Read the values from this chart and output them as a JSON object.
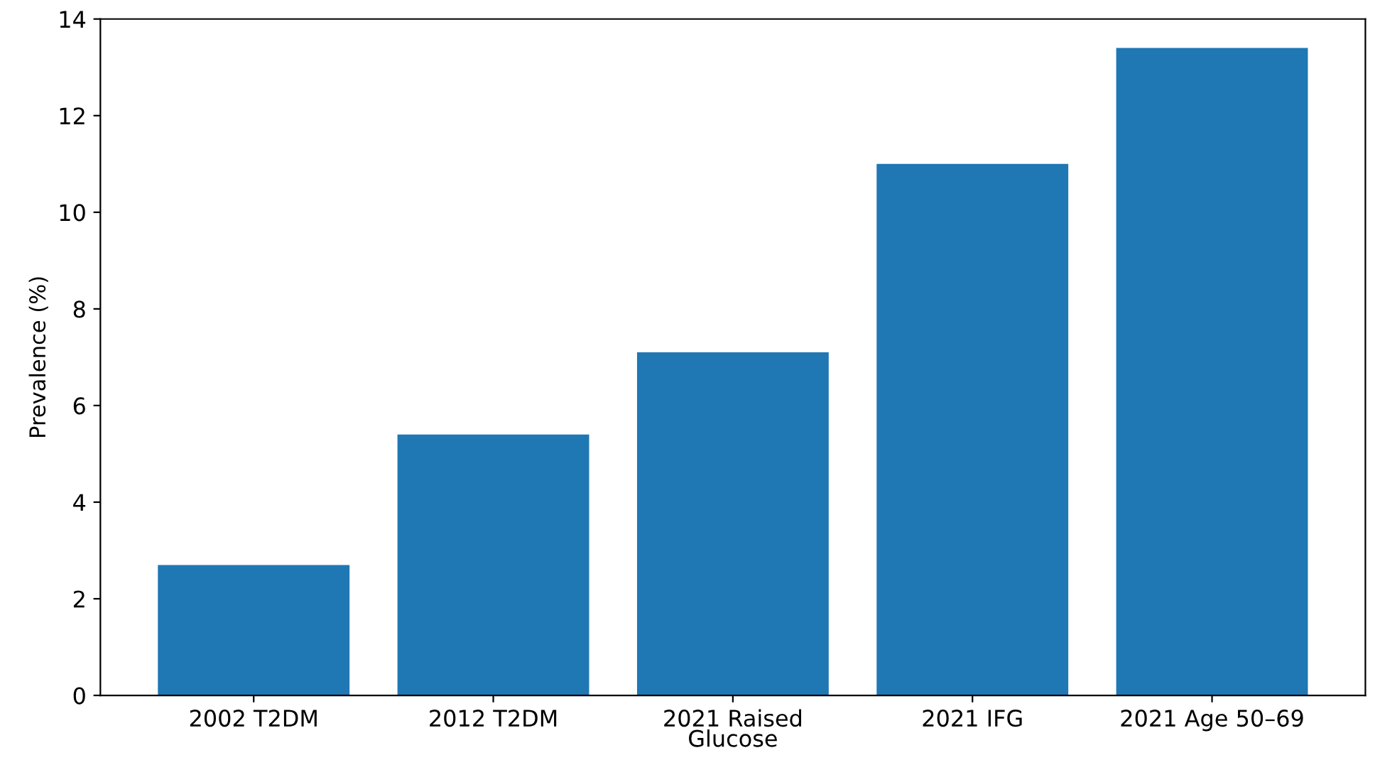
{
  "chart_data": {
    "type": "bar",
    "ylabel": "Prevalence (%)",
    "categories": [
      "2002 T2DM",
      "2012 T2DM",
      "2021 Raised\nGlucose",
      "2021 IFG",
      "2021 Age 50–69"
    ],
    "values": [
      2.7,
      5.4,
      7.1,
      11.0,
      13.4
    ],
    "color": "#1f77b4",
    "ylim": [
      0,
      14
    ],
    "yticks": [
      0,
      2,
      4,
      6,
      8,
      10,
      12,
      14
    ],
    "grid": false
  }
}
